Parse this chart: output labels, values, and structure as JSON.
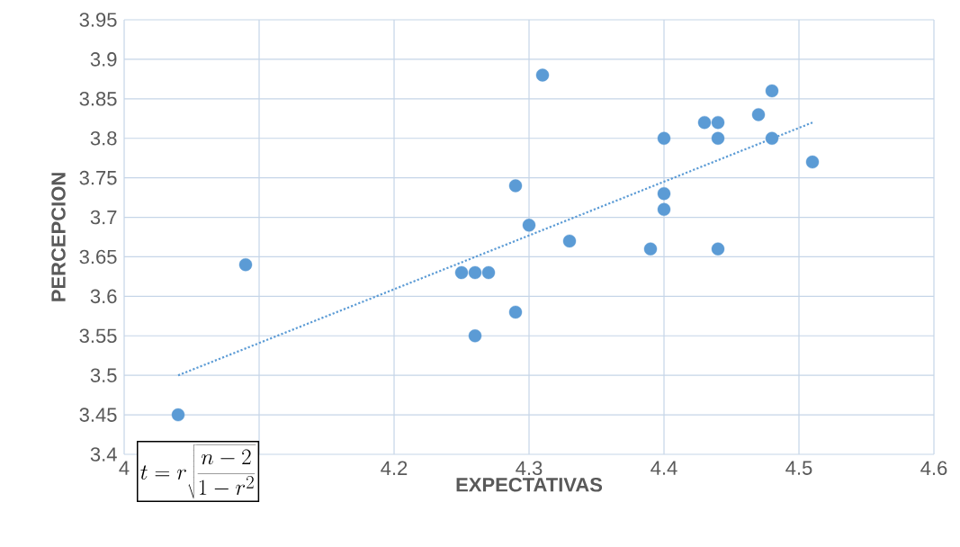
{
  "chart_data": {
    "type": "scatter",
    "xlabel": "EXPECTATIVAS",
    "ylabel": "PERCEPCION",
    "xlim": [
      4,
      4.6
    ],
    "xticks": [
      4,
      {
        "value": 4.1,
        "label": null
      },
      4.2,
      4.3,
      4.4,
      4.5,
      4.6
    ],
    "ylim": [
      3.4,
      3.95
    ],
    "yticks": [
      3.4,
      3.45,
      3.5,
      3.55,
      3.6,
      3.65,
      3.7,
      3.75,
      3.8,
      3.85,
      3.9,
      3.95
    ],
    "grid": true,
    "marker": "circle",
    "series": [
      {
        "color": "#5b9bd5",
        "x": [
          4.04,
          4.09,
          4.25,
          4.26,
          4.27,
          4.26,
          4.29,
          4.29,
          4.3,
          4.31,
          4.33,
          4.39,
          4.4,
          4.4,
          4.4,
          4.43,
          4.44,
          4.44,
          4.44,
          4.47,
          4.48,
          4.48,
          4.51
        ],
        "values": [
          3.45,
          3.64,
          3.63,
          3.63,
          3.63,
          3.55,
          3.58,
          3.74,
          3.69,
          3.88,
          3.67,
          3.66,
          3.8,
          3.73,
          3.71,
          3.82,
          3.82,
          3.8,
          3.66,
          3.83,
          3.86,
          3.8,
          3.77
        ]
      },
      {
        "type": "line",
        "color": "#5b9bd5",
        "marker": "none",
        "line_style": "dotted",
        "x": [
          4.04,
          4.51
        ],
        "values": [
          3.5,
          3.82
        ]
      }
    ],
    "annotations": [
      "t=r\\sqrt{\\frac{n-2}{1-r^2}}"
    ]
  }
}
